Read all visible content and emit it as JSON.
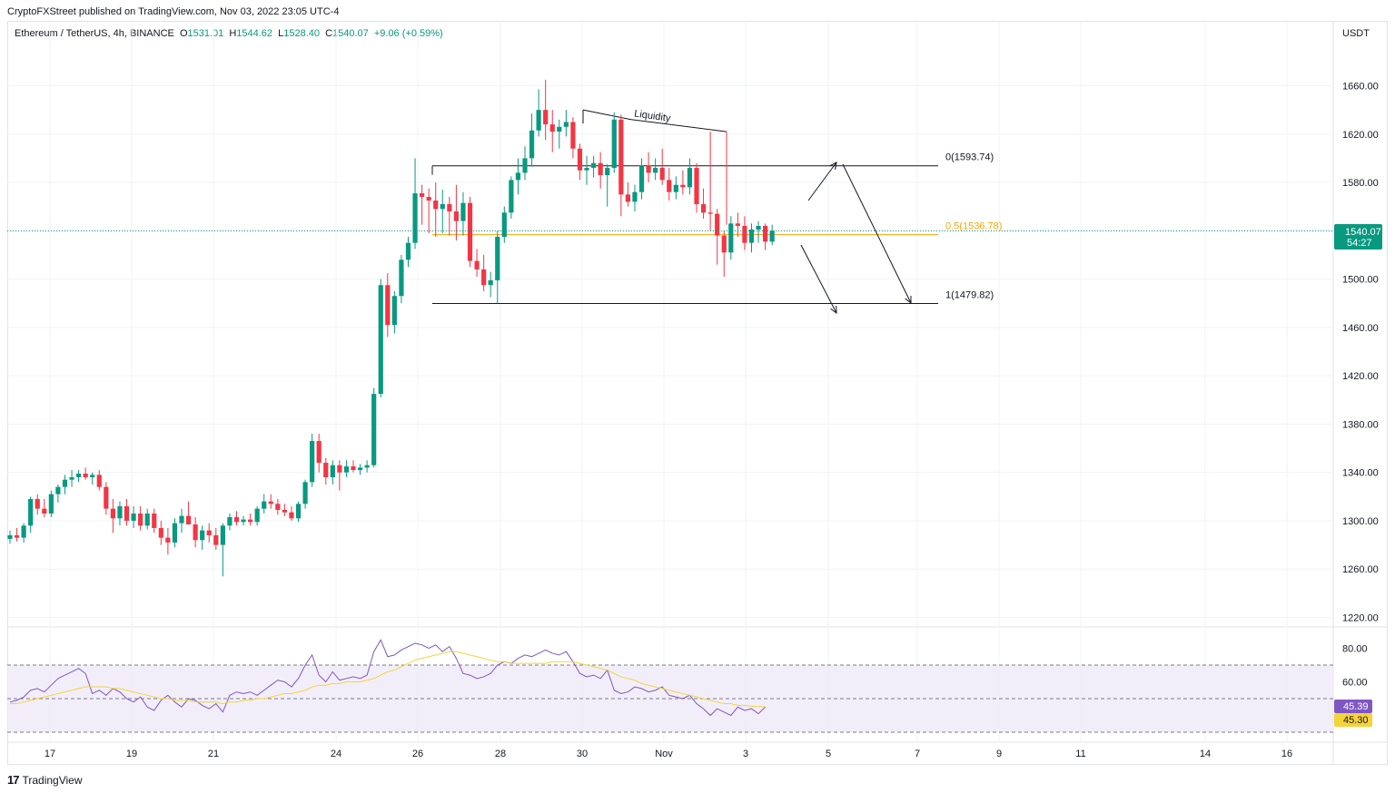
{
  "header": {
    "published": "CryptoFXStreet published on TradingView.com, Nov 03, 2022 23:05 UTC-4"
  },
  "legend": {
    "symbol": "Ethereum / TetherUS, 4h, BINANCE",
    "o_label": "O",
    "o_value": "1531.01",
    "h_label": "H",
    "h_value": "1544.62",
    "l_label": "L",
    "l_value": "1528.40",
    "c_label": "C",
    "c_value": "1540.07",
    "change": "+9.06 (+0.59%)"
  },
  "price_scale": {
    "currency": "USDT",
    "last_price": "1540.07",
    "countdown": "54:27"
  },
  "rsi_scale": {
    "rsi_value": "45.39",
    "ma_value": "45.30"
  },
  "brand": {
    "name": "TradingView"
  },
  "colors": {
    "up": "#089981",
    "down": "#f23645",
    "fib_mid": "#f7a600",
    "rsi": "#7e57c2",
    "rsi_ma": "#f5d33a",
    "rsi_band": "#ede7f6"
  },
  "chart_data": {
    "type": "candlestick",
    "symbol": "Ethereum / TetherUS",
    "timeframe": "4h",
    "y_ticks": [
      1220,
      1260,
      1300,
      1340,
      1380,
      1420,
      1460,
      1500,
      1540,
      1580,
      1620,
      1660
    ],
    "x_ticks": [
      "17",
      "19",
      "21",
      "24",
      "26",
      "28",
      "30",
      "Nov",
      "3",
      "5",
      "7",
      "9",
      "11",
      "14",
      "16"
    ],
    "candles": [
      {
        "o": 1285,
        "h": 1292,
        "l": 1281,
        "c": 1288
      },
      {
        "o": 1288,
        "h": 1294,
        "l": 1283,
        "c": 1286
      },
      {
        "o": 1286,
        "h": 1298,
        "l": 1282,
        "c": 1296
      },
      {
        "o": 1296,
        "h": 1320,
        "l": 1290,
        "c": 1318
      },
      {
        "o": 1318,
        "h": 1322,
        "l": 1305,
        "c": 1310
      },
      {
        "o": 1310,
        "h": 1318,
        "l": 1303,
        "c": 1306
      },
      {
        "o": 1306,
        "h": 1325,
        "l": 1303,
        "c": 1322
      },
      {
        "o": 1322,
        "h": 1330,
        "l": 1315,
        "c": 1328
      },
      {
        "o": 1328,
        "h": 1338,
        "l": 1322,
        "c": 1334
      },
      {
        "o": 1334,
        "h": 1342,
        "l": 1328,
        "c": 1336
      },
      {
        "o": 1336,
        "h": 1342,
        "l": 1332,
        "c": 1339
      },
      {
        "o": 1339,
        "h": 1344,
        "l": 1334,
        "c": 1336
      },
      {
        "o": 1336,
        "h": 1340,
        "l": 1330,
        "c": 1338
      },
      {
        "o": 1338,
        "h": 1342,
        "l": 1325,
        "c": 1328
      },
      {
        "o": 1328,
        "h": 1332,
        "l": 1305,
        "c": 1310
      },
      {
        "o": 1310,
        "h": 1318,
        "l": 1290,
        "c": 1302
      },
      {
        "o": 1302,
        "h": 1316,
        "l": 1296,
        "c": 1312
      },
      {
        "o": 1312,
        "h": 1318,
        "l": 1296,
        "c": 1300
      },
      {
        "o": 1300,
        "h": 1312,
        "l": 1294,
        "c": 1306
      },
      {
        "o": 1306,
        "h": 1312,
        "l": 1292,
        "c": 1296
      },
      {
        "o": 1296,
        "h": 1310,
        "l": 1293,
        "c": 1306
      },
      {
        "o": 1306,
        "h": 1310,
        "l": 1290,
        "c": 1294
      },
      {
        "o": 1294,
        "h": 1300,
        "l": 1280,
        "c": 1286
      },
      {
        "o": 1286,
        "h": 1294,
        "l": 1272,
        "c": 1282
      },
      {
        "o": 1282,
        "h": 1302,
        "l": 1278,
        "c": 1298
      },
      {
        "o": 1298,
        "h": 1310,
        "l": 1290,
        "c": 1304
      },
      {
        "o": 1304,
        "h": 1316,
        "l": 1300,
        "c": 1297
      },
      {
        "o": 1297,
        "h": 1303,
        "l": 1278,
        "c": 1284
      },
      {
        "o": 1284,
        "h": 1296,
        "l": 1276,
        "c": 1292
      },
      {
        "o": 1292,
        "h": 1298,
        "l": 1282,
        "c": 1288
      },
      {
        "o": 1288,
        "h": 1294,
        "l": 1276,
        "c": 1280
      },
      {
        "o": 1280,
        "h": 1298,
        "l": 1254,
        "c": 1296
      },
      {
        "o": 1296,
        "h": 1306,
        "l": 1292,
        "c": 1303
      },
      {
        "o": 1303,
        "h": 1308,
        "l": 1296,
        "c": 1299
      },
      {
        "o": 1299,
        "h": 1304,
        "l": 1296,
        "c": 1301
      },
      {
        "o": 1301,
        "h": 1306,
        "l": 1296,
        "c": 1299
      },
      {
        "o": 1299,
        "h": 1312,
        "l": 1296,
        "c": 1310
      },
      {
        "o": 1310,
        "h": 1322,
        "l": 1306,
        "c": 1316
      },
      {
        "o": 1316,
        "h": 1322,
        "l": 1310,
        "c": 1314
      },
      {
        "o": 1314,
        "h": 1318,
        "l": 1305,
        "c": 1309
      },
      {
        "o": 1309,
        "h": 1314,
        "l": 1304,
        "c": 1307
      },
      {
        "o": 1307,
        "h": 1312,
        "l": 1300,
        "c": 1302
      },
      {
        "o": 1302,
        "h": 1316,
        "l": 1299,
        "c": 1314
      },
      {
        "o": 1314,
        "h": 1334,
        "l": 1310,
        "c": 1332
      },
      {
        "o": 1332,
        "h": 1372,
        "l": 1328,
        "c": 1366
      },
      {
        "o": 1366,
        "h": 1372,
        "l": 1340,
        "c": 1348
      },
      {
        "o": 1348,
        "h": 1352,
        "l": 1330,
        "c": 1336
      },
      {
        "o": 1336,
        "h": 1350,
        "l": 1330,
        "c": 1346
      },
      {
        "o": 1346,
        "h": 1350,
        "l": 1325,
        "c": 1340
      },
      {
        "o": 1340,
        "h": 1350,
        "l": 1336,
        "c": 1345
      },
      {
        "o": 1345,
        "h": 1350,
        "l": 1340,
        "c": 1342
      },
      {
        "o": 1342,
        "h": 1347,
        "l": 1338,
        "c": 1344
      },
      {
        "o": 1344,
        "h": 1350,
        "l": 1340,
        "c": 1346
      },
      {
        "o": 1346,
        "h": 1410,
        "l": 1344,
        "c": 1405
      },
      {
        "o": 1405,
        "h": 1500,
        "l": 1402,
        "c": 1495
      },
      {
        "o": 1495,
        "h": 1505,
        "l": 1452,
        "c": 1462
      },
      {
        "o": 1462,
        "h": 1490,
        "l": 1455,
        "c": 1486
      },
      {
        "o": 1486,
        "h": 1520,
        "l": 1480,
        "c": 1516
      },
      {
        "o": 1516,
        "h": 1535,
        "l": 1510,
        "c": 1530
      },
      {
        "o": 1530,
        "h": 1600,
        "l": 1525,
        "c": 1571
      },
      {
        "o": 1571,
        "h": 1578,
        "l": 1545,
        "c": 1568
      },
      {
        "o": 1568,
        "h": 1575,
        "l": 1538,
        "c": 1565
      },
      {
        "o": 1565,
        "h": 1580,
        "l": 1535,
        "c": 1558
      },
      {
        "o": 1558,
        "h": 1574,
        "l": 1538,
        "c": 1562
      },
      {
        "o": 1562,
        "h": 1568,
        "l": 1536,
        "c": 1556
      },
      {
        "o": 1556,
        "h": 1578,
        "l": 1532,
        "c": 1548
      },
      {
        "o": 1548,
        "h": 1572,
        "l": 1536,
        "c": 1563
      },
      {
        "o": 1563,
        "h": 1568,
        "l": 1510,
        "c": 1515
      },
      {
        "o": 1515,
        "h": 1525,
        "l": 1502,
        "c": 1508
      },
      {
        "o": 1508,
        "h": 1520,
        "l": 1490,
        "c": 1495
      },
      {
        "o": 1495,
        "h": 1506,
        "l": 1485,
        "c": 1499
      },
      {
        "o": 1499,
        "h": 1540,
        "l": 1480,
        "c": 1535
      },
      {
        "o": 1535,
        "h": 1560,
        "l": 1530,
        "c": 1555
      },
      {
        "o": 1555,
        "h": 1585,
        "l": 1550,
        "c": 1582
      },
      {
        "o": 1582,
        "h": 1600,
        "l": 1570,
        "c": 1588
      },
      {
        "o": 1588,
        "h": 1610,
        "l": 1582,
        "c": 1600
      },
      {
        "o": 1600,
        "h": 1637,
        "l": 1593,
        "c": 1623
      },
      {
        "o": 1623,
        "h": 1657,
        "l": 1618,
        "c": 1640
      },
      {
        "o": 1640,
        "h": 1665,
        "l": 1615,
        "c": 1628
      },
      {
        "o": 1628,
        "h": 1640,
        "l": 1605,
        "c": 1622
      },
      {
        "o": 1622,
        "h": 1632,
        "l": 1608,
        "c": 1626
      },
      {
        "o": 1626,
        "h": 1640,
        "l": 1618,
        "c": 1630
      },
      {
        "o": 1630,
        "h": 1634,
        "l": 1600,
        "c": 1608
      },
      {
        "o": 1608,
        "h": 1612,
        "l": 1582,
        "c": 1590
      },
      {
        "o": 1590,
        "h": 1602,
        "l": 1578,
        "c": 1592
      },
      {
        "o": 1592,
        "h": 1602,
        "l": 1584,
        "c": 1596
      },
      {
        "o": 1596,
        "h": 1605,
        "l": 1575,
        "c": 1586
      },
      {
        "o": 1586,
        "h": 1595,
        "l": 1560,
        "c": 1592
      },
      {
        "o": 1592,
        "h": 1638,
        "l": 1588,
        "c": 1632
      },
      {
        "o": 1632,
        "h": 1636,
        "l": 1552,
        "c": 1570
      },
      {
        "o": 1570,
        "h": 1580,
        "l": 1560,
        "c": 1564
      },
      {
        "o": 1564,
        "h": 1578,
        "l": 1556,
        "c": 1572
      },
      {
        "o": 1572,
        "h": 1600,
        "l": 1566,
        "c": 1594
      },
      {
        "o": 1594,
        "h": 1605,
        "l": 1580,
        "c": 1588
      },
      {
        "o": 1588,
        "h": 1600,
        "l": 1582,
        "c": 1592
      },
      {
        "o": 1592,
        "h": 1608,
        "l": 1578,
        "c": 1582
      },
      {
        "o": 1582,
        "h": 1592,
        "l": 1565,
        "c": 1572
      },
      {
        "o": 1572,
        "h": 1585,
        "l": 1566,
        "c": 1578
      },
      {
        "o": 1578,
        "h": 1590,
        "l": 1570,
        "c": 1576
      },
      {
        "o": 1576,
        "h": 1600,
        "l": 1570,
        "c": 1592
      },
      {
        "o": 1592,
        "h": 1596,
        "l": 1555,
        "c": 1562
      },
      {
        "o": 1562,
        "h": 1575,
        "l": 1550,
        "c": 1555
      },
      {
        "o": 1555,
        "h": 1622,
        "l": 1540,
        "c": 1554
      },
      {
        "o": 1554,
        "h": 1558,
        "l": 1512,
        "c": 1536
      },
      {
        "o": 1536,
        "h": 1540,
        "l": 1502,
        "c": 1522
      },
      {
        "o": 1522,
        "h": 1552,
        "l": 1516,
        "c": 1546
      },
      {
        "o": 1546,
        "h": 1555,
        "l": 1535,
        "c": 1544
      },
      {
        "o": 1544,
        "h": 1552,
        "l": 1524,
        "c": 1530
      },
      {
        "o": 1530,
        "h": 1546,
        "l": 1522,
        "c": 1541
      },
      {
        "o": 1541,
        "h": 1548,
        "l": 1530,
        "c": 1544
      },
      {
        "o": 1544,
        "h": 1546,
        "l": 1524,
        "c": 1531
      },
      {
        "o": 1531,
        "h": 1545,
        "l": 1528,
        "c": 1540
      }
    ],
    "rsi": [
      48,
      49,
      51,
      55,
      56,
      54,
      58,
      62,
      64,
      66,
      68,
      65,
      53,
      55,
      52,
      56,
      54,
      50,
      48,
      51,
      45,
      43,
      49,
      52,
      48,
      45,
      50,
      49,
      46,
      44,
      47,
      42,
      52,
      54,
      53,
      54,
      52,
      55,
      58,
      61,
      60,
      57,
      62,
      70,
      76,
      64,
      60,
      66,
      61,
      62,
      63,
      62,
      64,
      78,
      85,
      75,
      76,
      79,
      81,
      83,
      82,
      80,
      82,
      78,
      81,
      74,
      65,
      64,
      62,
      63,
      65,
      70,
      72,
      71,
      74,
      76,
      75,
      77,
      79,
      77,
      76,
      78,
      72,
      65,
      63,
      64,
      62,
      67,
      55,
      53,
      54,
      57,
      56,
      54,
      55,
      57,
      52,
      51,
      50,
      52,
      47,
      44,
      40,
      44,
      42,
      40,
      45,
      43,
      44,
      41,
      45
    ],
    "rsi_ma": [
      47,
      47,
      48,
      49,
      50,
      51,
      52,
      53,
      54,
      55,
      56,
      57,
      57,
      57,
      57,
      56,
      56,
      55,
      54,
      53,
      52,
      51,
      50,
      50,
      49,
      49,
      49,
      48,
      48,
      48,
      48,
      47,
      48,
      48,
      49,
      49,
      50,
      50,
      51,
      52,
      53,
      53,
      54,
      55,
      57,
      58,
      58,
      59,
      59,
      60,
      60,
      60,
      61,
      62,
      64,
      66,
      67,
      69,
      71,
      73,
      74,
      75,
      76,
      77,
      78,
      78,
      77,
      76,
      75,
      74,
      73,
      72,
      72,
      71,
      71,
      71,
      71,
      71,
      71,
      72,
      72,
      72,
      72,
      71,
      70,
      69,
      68,
      67,
      65,
      63,
      62,
      61,
      59,
      58,
      57,
      56,
      55,
      54,
      53,
      52,
      51,
      50,
      49,
      48,
      47,
      47,
      46,
      46,
      45.5,
      45.3,
      45.3
    ],
    "rsi_ticks": [
      60,
      80
    ],
    "rsi_band": [
      30,
      70
    ],
    "annotations": {
      "fib_0": "0(1593.74)",
      "fib_05": "0.5(1536.78)",
      "fib_1": "1(1479.82)",
      "liquidity": "Liquidity"
    },
    "fib_levels": [
      1593.74,
      1536.78,
      1479.82
    ],
    "liquidity_points": [
      1640,
      1632,
      1622
    ]
  }
}
